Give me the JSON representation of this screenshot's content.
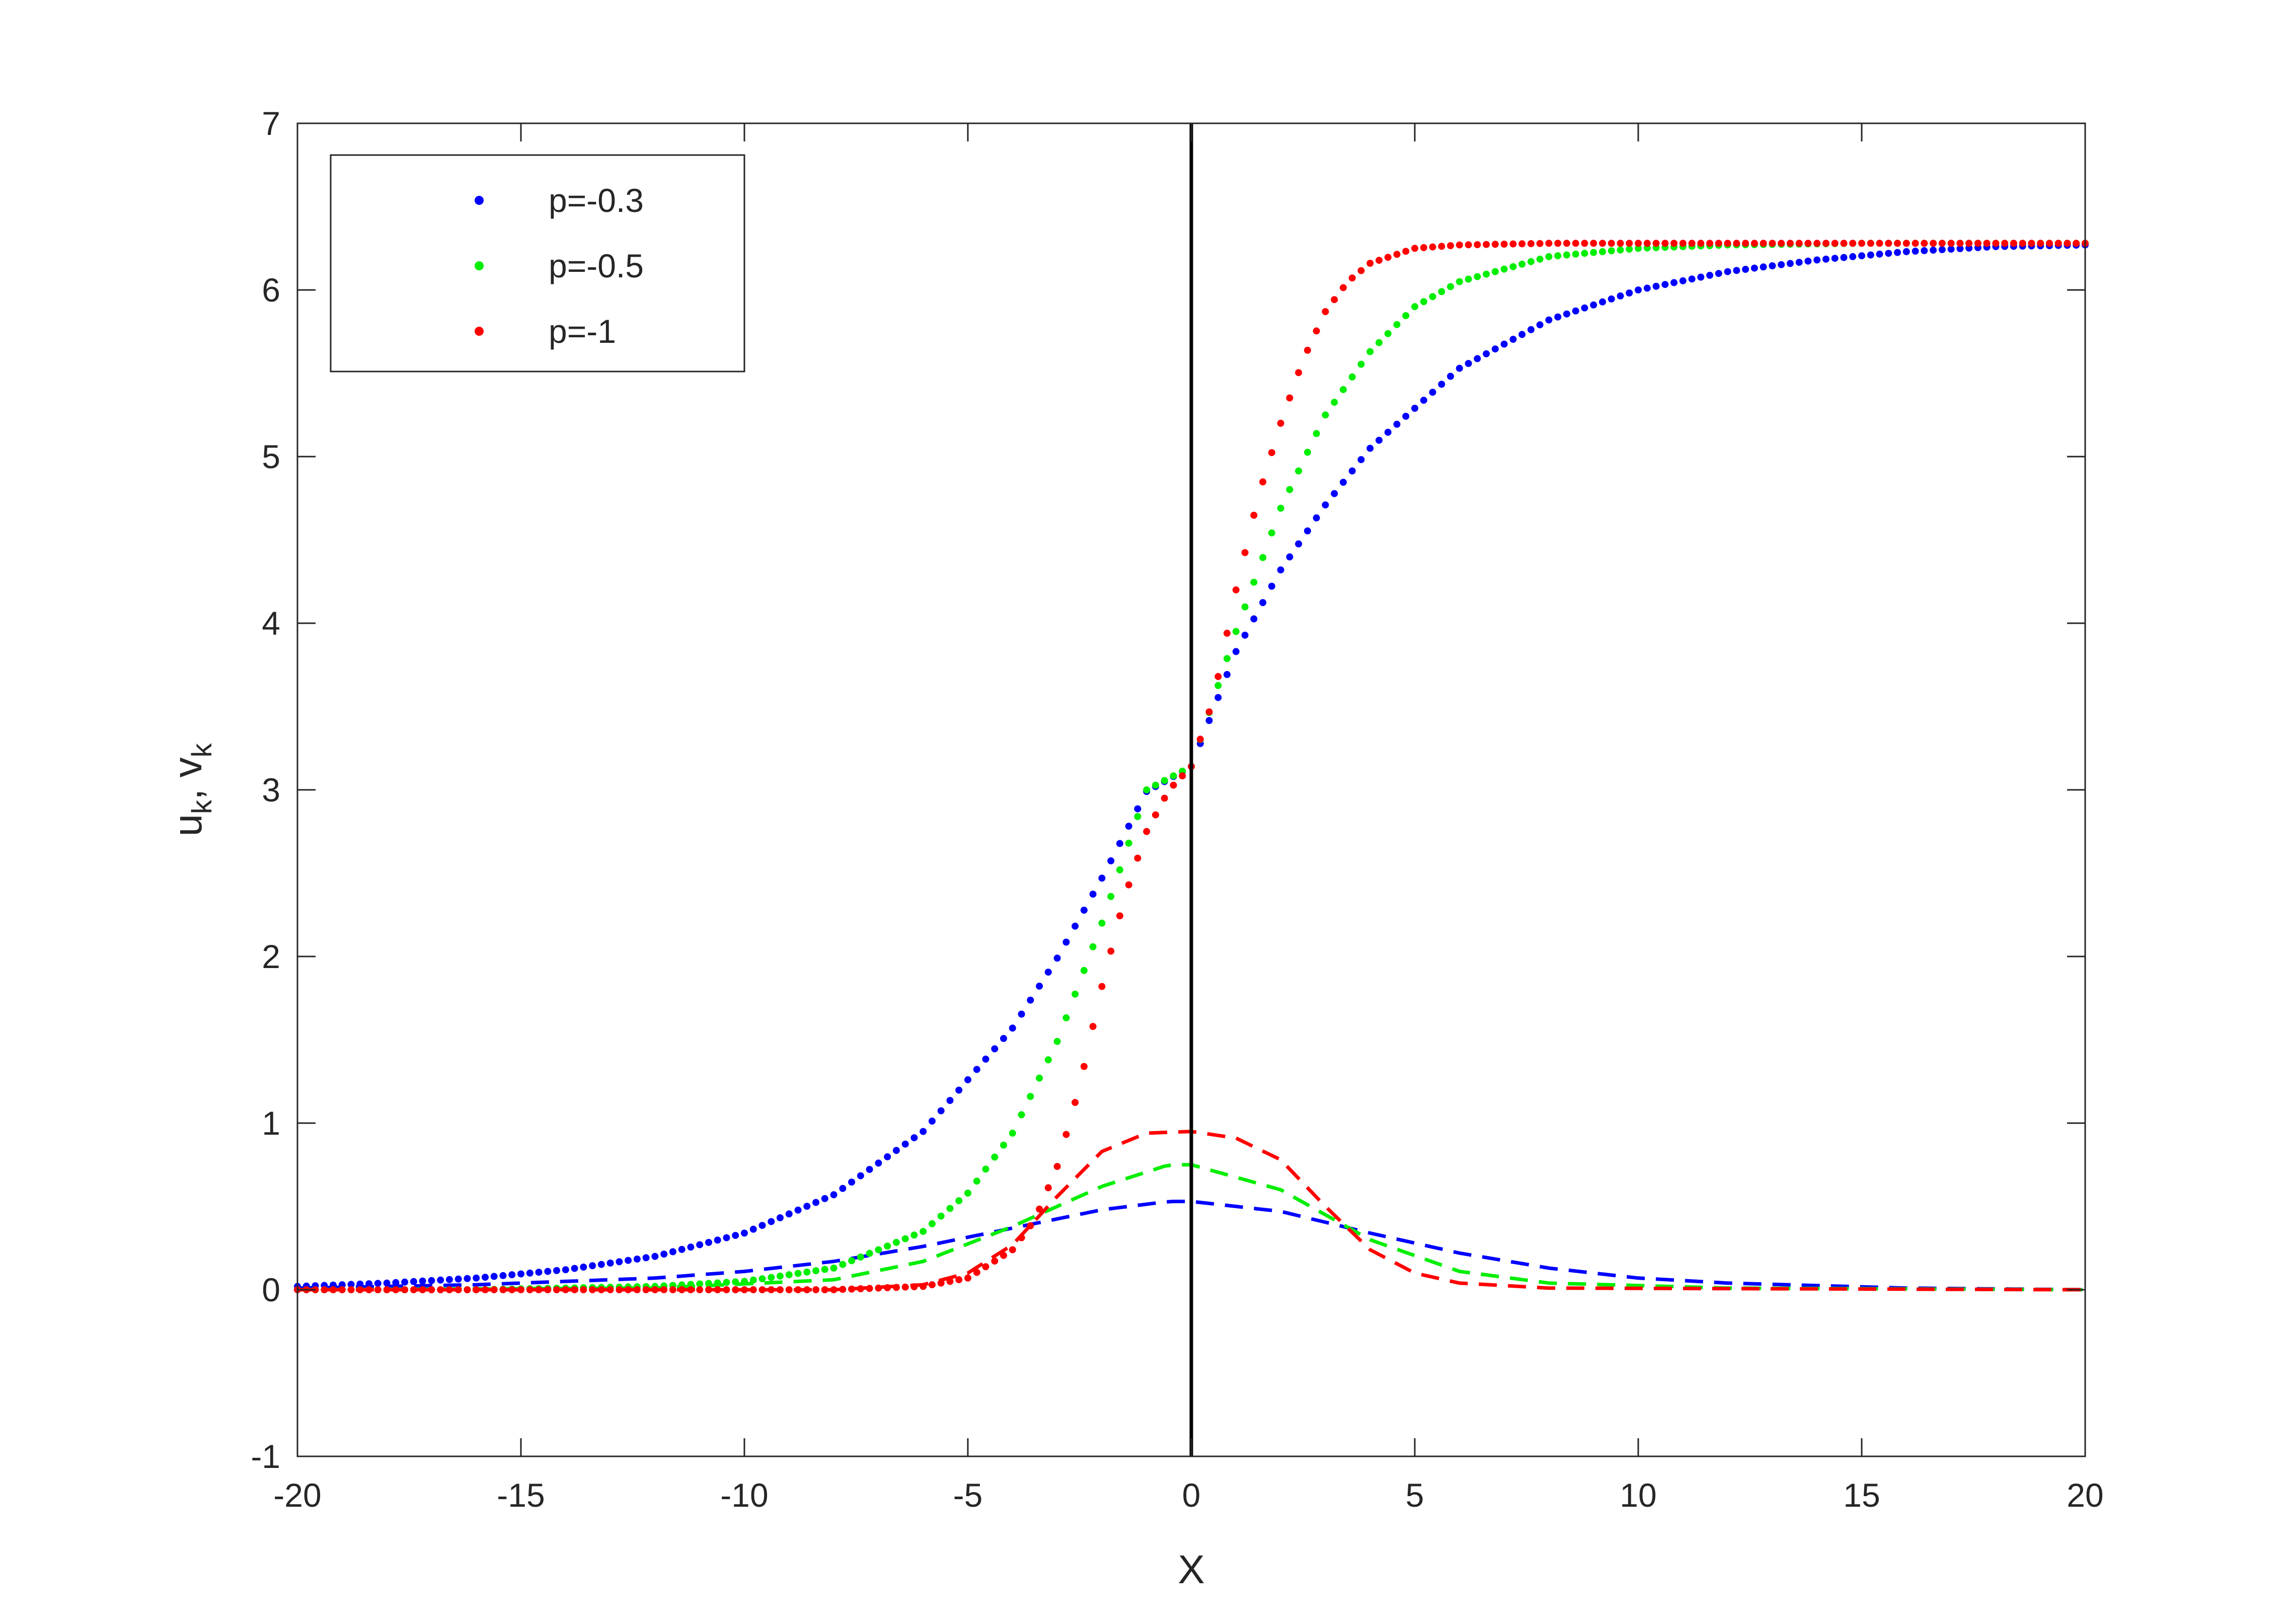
{
  "chart_data": {
    "type": "scatter",
    "title": "",
    "xlabel": "X",
    "ylabel": {
      "main1": "u",
      "sub1": "k",
      "sep": ", ",
      "main2": "v",
      "sub2": "k"
    },
    "xlim": [
      -20,
      20
    ],
    "ylim": [
      -1,
      7
    ],
    "xticks": [
      -20,
      -15,
      -10,
      -5,
      0,
      5,
      10,
      15,
      20
    ],
    "yticks": [
      -1,
      0,
      1,
      2,
      3,
      4,
      5,
      6,
      7
    ],
    "grid": false,
    "vertical_line_x": 0,
    "legend": {
      "position": "top-left"
    },
    "series": [
      {
        "name": "p=-0.3",
        "p": -0.3,
        "color": "#0000ff",
        "u": {
          "x": [
            -20,
            -18,
            -16,
            -14,
            -12,
            -10,
            -8,
            -6,
            -4,
            -3,
            -2,
            -1,
            0,
            1,
            2,
            3,
            4,
            6,
            8,
            10,
            12,
            14,
            16,
            18,
            20
          ],
          "y": [
            0.02,
            0.04,
            0.07,
            0.12,
            0.2,
            0.34,
            0.57,
            0.95,
            1.57,
            1.99,
            2.47,
            2.99,
            3.14,
            3.83,
            4.32,
            4.71,
            5.05,
            5.53,
            5.82,
            6.0,
            6.11,
            6.18,
            6.23,
            6.26,
            6.27
          ],
          "style": "dotted"
        },
        "v": {
          "x": [
            -20,
            -16,
            -12,
            -10,
            -8,
            -6,
            -4,
            -2,
            -0.5,
            0,
            2,
            4,
            6,
            8,
            10,
            12,
            16,
            20
          ],
          "y": [
            0.01,
            0.03,
            0.07,
            0.11,
            0.17,
            0.26,
            0.37,
            0.48,
            0.53,
            0.53,
            0.47,
            0.34,
            0.22,
            0.13,
            0.07,
            0.04,
            0.01,
            0.0
          ],
          "style": "dashed"
        }
      },
      {
        "name": "p=-0.5",
        "p": -0.5,
        "color": "#00ee00",
        "u": {
          "x": [
            -20,
            -16,
            -12,
            -10,
            -8,
            -6,
            -5,
            -4,
            -3,
            -2,
            -1,
            0,
            1,
            2,
            3,
            4,
            5,
            6,
            8,
            10,
            12,
            15,
            20
          ],
          "y": [
            0.0,
            0.0,
            0.02,
            0.05,
            0.13,
            0.35,
            0.58,
            0.94,
            1.49,
            2.2,
            3.0,
            3.14,
            3.95,
            4.69,
            5.25,
            5.63,
            5.9,
            6.05,
            6.2,
            6.25,
            6.27,
            6.28,
            6.28
          ],
          "style": "dotted"
        },
        "v": {
          "x": [
            -20,
            -12,
            -8,
            -6,
            -4,
            -2,
            -0.5,
            0,
            2,
            4,
            6,
            8,
            12,
            20
          ],
          "y": [
            0.0,
            0.01,
            0.06,
            0.17,
            0.38,
            0.62,
            0.75,
            0.75,
            0.6,
            0.3,
            0.11,
            0.04,
            0.01,
            0.0
          ],
          "style": "dashed"
        }
      },
      {
        "name": "p=-1",
        "p": -1,
        "color": "#ff0000",
        "u": {
          "x": [
            -20,
            -10,
            -8,
            -6,
            -5,
            -4,
            -3.5,
            -3,
            -2.5,
            -2,
            -1.5,
            -1,
            -0.5,
            0,
            0.5,
            1,
            1.5,
            2,
            2.5,
            3,
            3.5,
            4,
            5,
            6,
            8,
            10,
            20
          ],
          "y": [
            0.0,
            0.0,
            0.0,
            0.02,
            0.07,
            0.24,
            0.42,
            0.74,
            1.22,
            1.82,
            2.35,
            2.75,
            3.0,
            3.14,
            3.55,
            4.2,
            4.76,
            5.2,
            5.58,
            5.87,
            6.05,
            6.16,
            6.25,
            6.27,
            6.28,
            6.28,
            6.28
          ],
          "style": "dotted"
        },
        "v": {
          "x": [
            -20,
            -8,
            -6,
            -5,
            -4,
            -3,
            -2,
            -1,
            0,
            1,
            2,
            3,
            4,
            5,
            6,
            8,
            20
          ],
          "y": [
            0.0,
            0.0,
            0.03,
            0.1,
            0.27,
            0.56,
            0.83,
            0.94,
            0.95,
            0.91,
            0.78,
            0.5,
            0.24,
            0.1,
            0.04,
            0.01,
            0.0
          ],
          "style": "dashed"
        }
      }
    ]
  }
}
